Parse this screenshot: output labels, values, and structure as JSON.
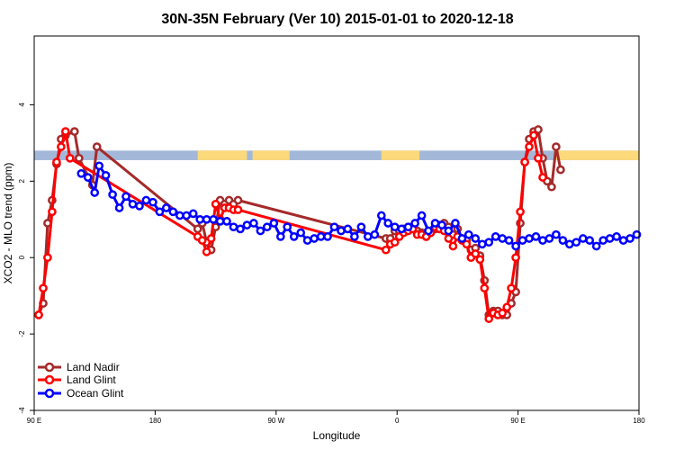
{
  "chart_data": {
    "type": "line",
    "title": "30N-35N February (Ver 10)   2015-01-01 to 2020-12-18",
    "xlabel": "Longitude",
    "ylabel": "XCO2 - MLO trend (ppm)",
    "xlim": [
      -90,
      180
    ],
    "ylim": [
      -4,
      5.8
    ],
    "x_ticks": [
      {
        "value": -90,
        "label": "90 E"
      },
      {
        "value": -36,
        "label": "180"
      },
      {
        "value": 18,
        "label": "90 W"
      },
      {
        "value": 72,
        "label": "0"
      },
      {
        "value": 126,
        "label": "90 E"
      },
      {
        "value": 180,
        "label": "180"
      }
    ],
    "y_ticks": [
      {
        "value": -4,
        "label": "-4"
      },
      {
        "value": -2,
        "label": "-2"
      },
      {
        "value": 0,
        "label": "0"
      },
      {
        "value": 2,
        "label": "2"
      },
      {
        "value": 4,
        "label": "4"
      }
    ],
    "band": {
      "y_min": 2.55,
      "y_max": 2.8,
      "ocean_color": "#a3b8d8",
      "land_color": "#fcd97a",
      "land_ranges": [
        [
          -17,
          5
        ],
        [
          7.5,
          24
        ],
        [
          65,
          82
        ],
        [
          142,
          180
        ]
      ]
    },
    "legend": {
      "position": "bottom-left"
    },
    "series": [
      {
        "name": "Land Nadir",
        "color": "#a52a2a",
        "x": [
          -88,
          -86,
          -84,
          -82,
          -80,
          -78,
          -76,
          -72,
          -70,
          -64,
          -62,
          -17,
          -15,
          -13,
          -11,
          -9,
          -7,
          -5,
          -3,
          -1,
          1,
          67,
          69,
          71,
          73,
          75,
          77,
          79,
          81,
          83,
          85,
          87,
          89,
          91,
          93,
          95,
          97,
          99,
          101,
          103,
          105,
          107,
          109,
          111,
          113,
          115,
          117,
          119,
          121,
          123,
          125,
          127,
          129,
          131,
          133,
          135,
          137,
          139,
          141,
          143,
          145
        ],
        "y": [
          -1.5,
          -1.2,
          0.9,
          1.5,
          2.45,
          3.1,
          3.2,
          3.3,
          2.6,
          1.9,
          2.9,
          0.75,
          0.9,
          0.4,
          0.2,
          0.8,
          1.5,
          1.4,
          1.5,
          1.4,
          1.5,
          0.5,
          0.5,
          0.7,
          0.7,
          0.75,
          0.8,
          0.8,
          0.7,
          0.65,
          0.55,
          0.65,
          0.75,
          0.85,
          0.9,
          0.8,
          0.6,
          0.75,
          0.5,
          0.45,
          0.2,
          0.25,
          0.05,
          -0.6,
          -1.5,
          -1.4,
          -1.4,
          -1.5,
          -1.5,
          -1.2,
          -0.9,
          0.9,
          2.5,
          3.1,
          3.3,
          3.35,
          2.6,
          2.0,
          1.85,
          2.9,
          2.3
        ]
      },
      {
        "name": "Land Glint",
        "color": "#ff0000",
        "x": [
          -88,
          -86,
          -84,
          -82,
          -80,
          -78,
          -76,
          -74,
          -17,
          -15,
          -13,
          -11,
          -9,
          -7,
          -5,
          -3,
          -1,
          1,
          67,
          69,
          71,
          73,
          75,
          77,
          79,
          81,
          83,
          85,
          87,
          89,
          91,
          93,
          95,
          97,
          99,
          101,
          103,
          105,
          107,
          109,
          111,
          113,
          115,
          117,
          119,
          121,
          123,
          125,
          127,
          129,
          131,
          133,
          135,
          137
        ],
        "y": [
          -1.5,
          -0.8,
          0.0,
          1.2,
          2.5,
          2.9,
          3.3,
          2.6,
          0.55,
          0.45,
          0.15,
          0.5,
          1.4,
          1.0,
          1.3,
          1.3,
          1.25,
          1.25,
          0.2,
          0.35,
          0.4,
          0.55,
          0.65,
          0.7,
          0.75,
          0.6,
          0.6,
          0.55,
          0.65,
          0.8,
          0.75,
          0.7,
          0.5,
          0.3,
          0.55,
          0.45,
          0.35,
          0.0,
          0.1,
          -0.05,
          -0.8,
          -1.6,
          -1.45,
          -1.5,
          -1.45,
          -1.3,
          -0.8,
          0.0,
          1.2,
          2.5,
          2.9,
          3.2,
          2.6,
          2.1
        ]
      },
      {
        "name": "Ocean Glint",
        "color": "#0000ff",
        "x": [
          -69,
          -66,
          -63,
          -61,
          -58,
          -55,
          -52,
          -49,
          -46,
          -43,
          -40,
          -37,
          -34,
          -31,
          -28,
          -25,
          -22,
          -19,
          -16,
          -13,
          -10,
          -7,
          -4,
          -1,
          2,
          5,
          8,
          11,
          14,
          17,
          20,
          23,
          26,
          29,
          32,
          35,
          38,
          41,
          44,
          47,
          50,
          53,
          56,
          59,
          62,
          65,
          68,
          71,
          74,
          77,
          80,
          83,
          86,
          89,
          92,
          95,
          98,
          101,
          104,
          107,
          110,
          113,
          116,
          119,
          122,
          125,
          128,
          131,
          134,
          137,
          140,
          143,
          146,
          149,
          152,
          155,
          158,
          161,
          164,
          167,
          170,
          173,
          176,
          179
        ],
        "y": [
          2.2,
          2.1,
          1.7,
          2.4,
          2.15,
          1.65,
          1.3,
          1.6,
          1.4,
          1.35,
          1.5,
          1.45,
          1.2,
          1.3,
          1.2,
          1.1,
          1.1,
          1.15,
          1.0,
          1.0,
          1.0,
          0.95,
          0.95,
          0.8,
          0.75,
          0.85,
          0.9,
          0.7,
          0.8,
          0.9,
          0.55,
          0.8,
          0.55,
          0.65,
          0.45,
          0.5,
          0.55,
          0.55,
          0.8,
          0.7,
          0.75,
          0.55,
          0.8,
          0.55,
          0.6,
          1.1,
          0.9,
          0.8,
          0.75,
          0.8,
          0.9,
          1.1,
          0.7,
          0.9,
          0.85,
          0.7,
          0.9,
          0.5,
          0.6,
          0.5,
          0.35,
          0.4,
          0.55,
          0.5,
          0.45,
          0.3,
          0.45,
          0.5,
          0.55,
          0.45,
          0.5,
          0.6,
          0.45,
          0.35,
          0.4,
          0.5,
          0.45,
          0.3,
          0.45,
          0.5,
          0.55,
          0.45,
          0.5,
          0.6
        ]
      }
    ]
  }
}
